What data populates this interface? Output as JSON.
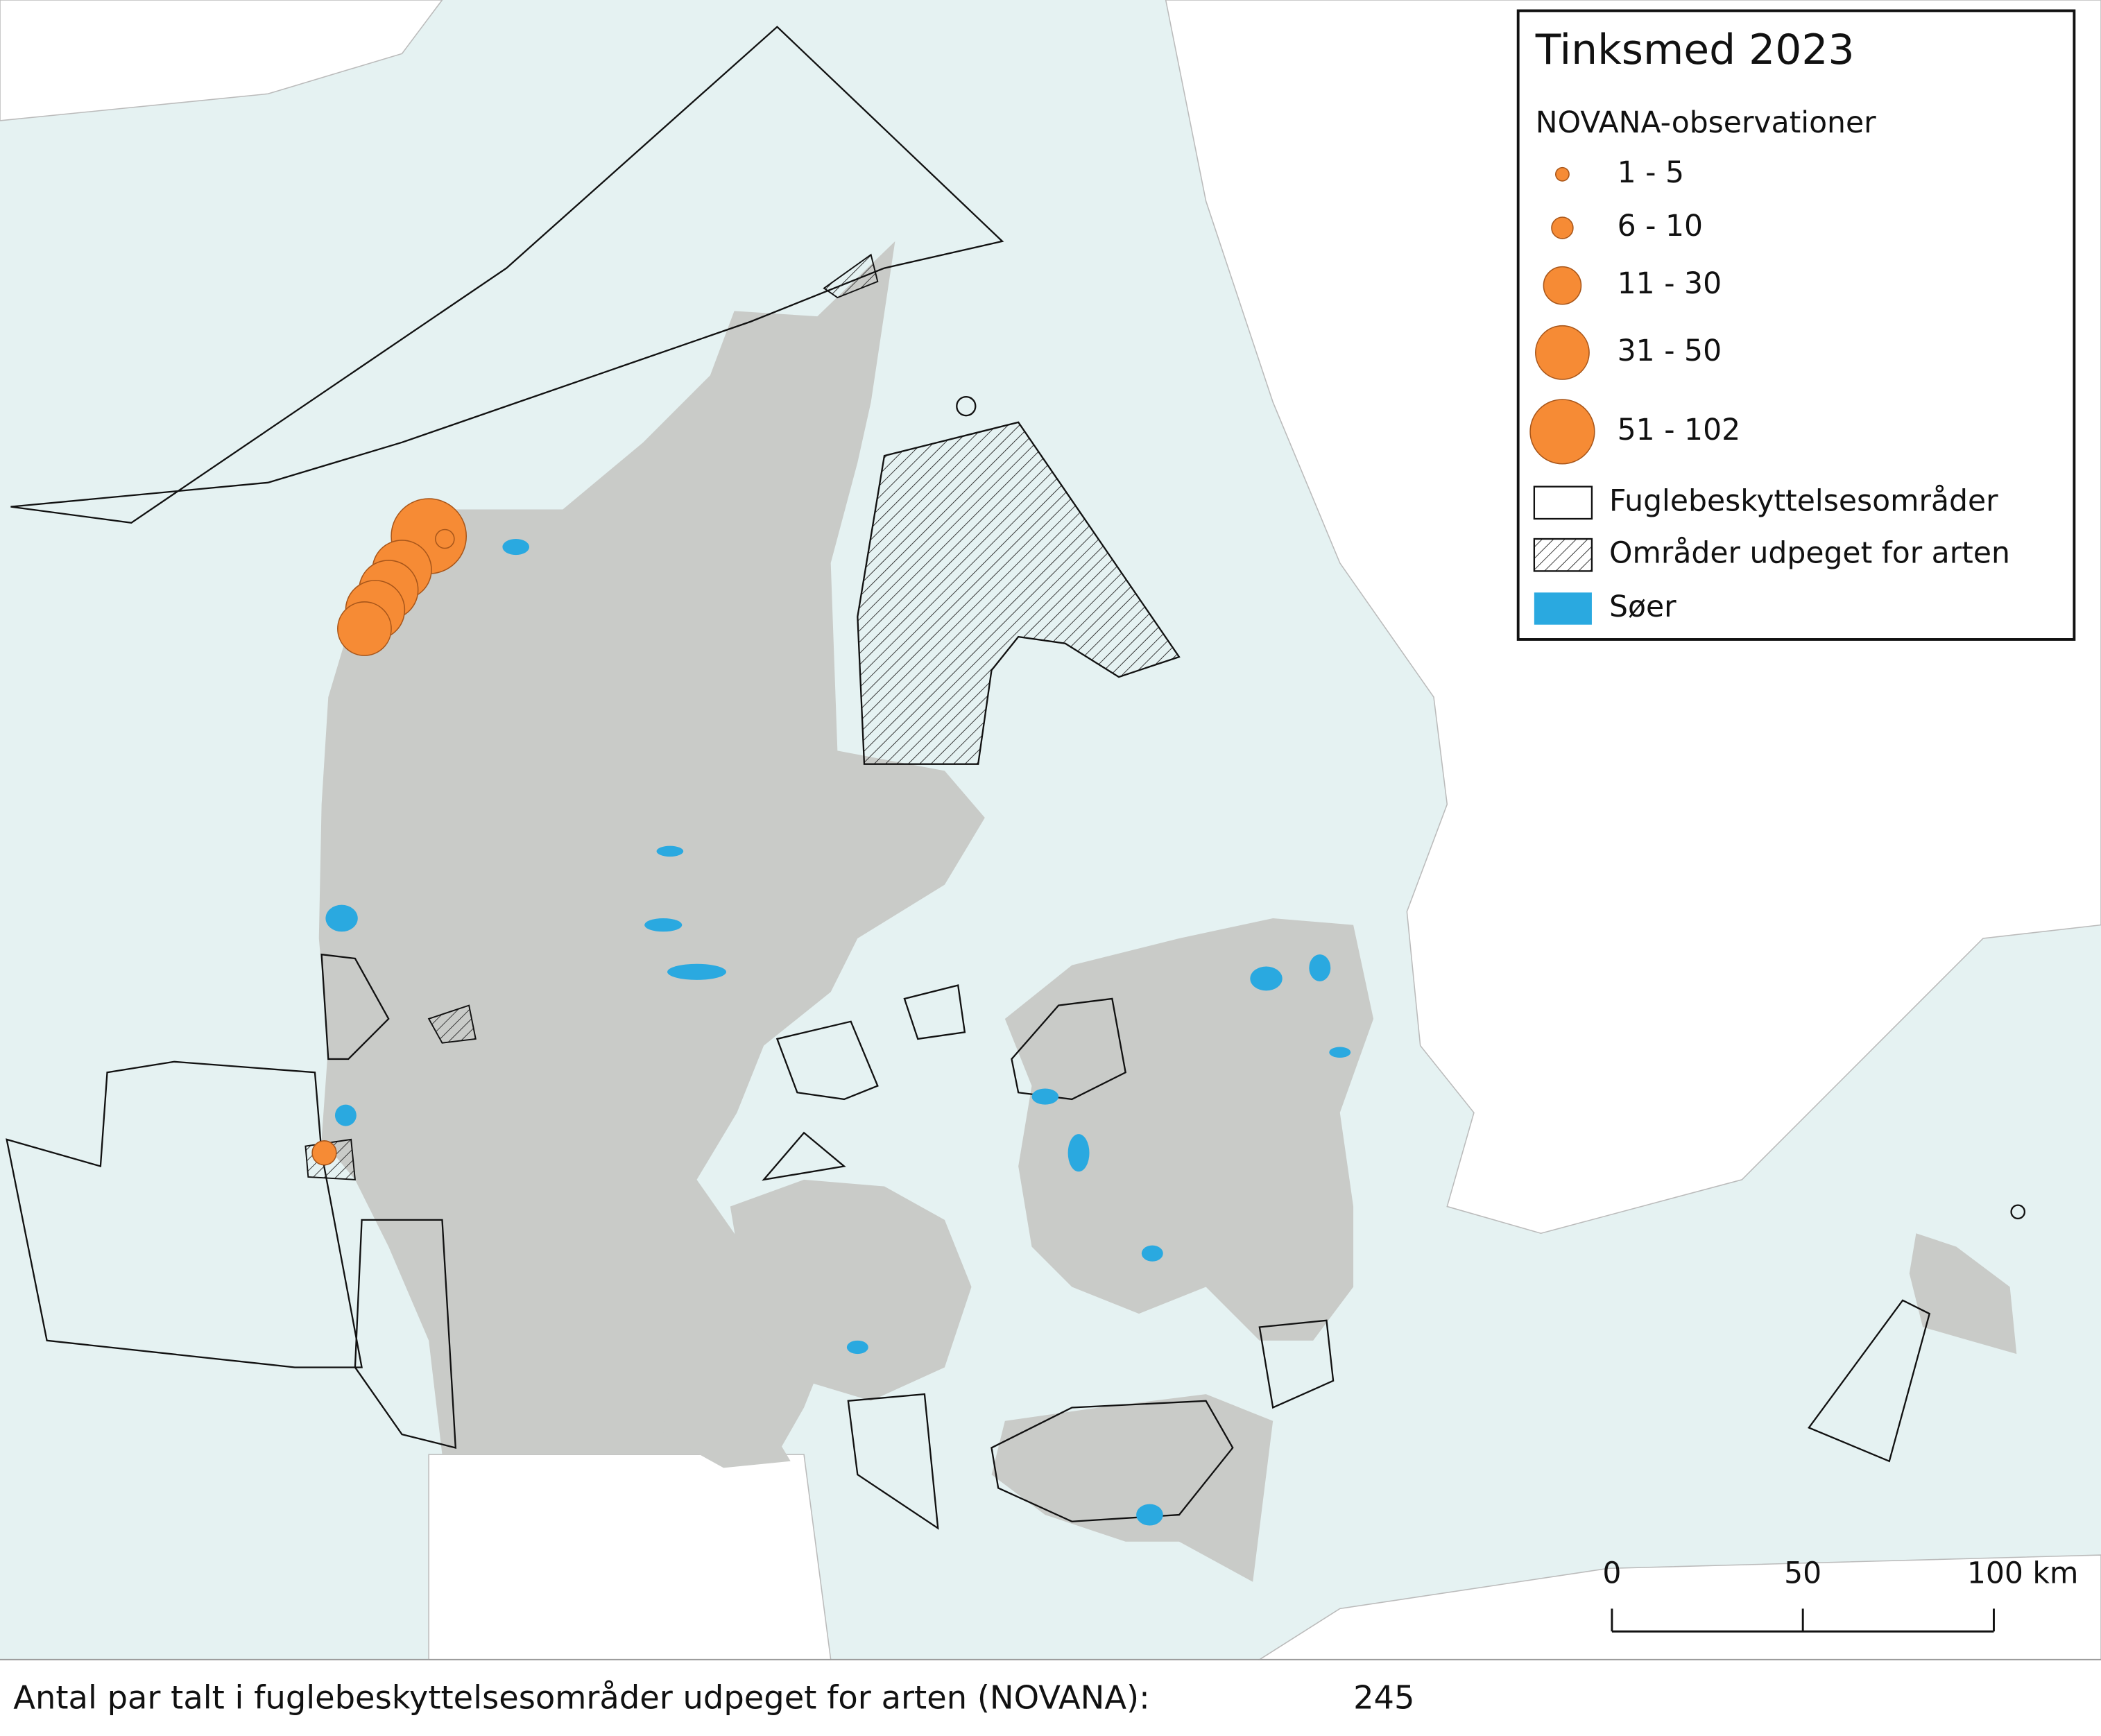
{
  "legend": {
    "title": "Tinksmed 2023",
    "subtitle": "NOVANA-observationer",
    "size_classes": [
      "1 - 5",
      "6 - 10",
      "11 - 30",
      "31 - 50",
      "51 - 102"
    ],
    "areas": [
      "Fuglebeskyttelsesområder",
      "Områder udpeget for arten",
      "Søer"
    ]
  },
  "scale_bar": {
    "ticks": [
      0,
      50,
      {
        "value": 100,
        "label": "100 km"
      }
    ]
  },
  "footer": {
    "label": "Antal par talt i fuglebeskyttelsesområder udpeget for arten (NOVANA):",
    "value": 245
  }
}
